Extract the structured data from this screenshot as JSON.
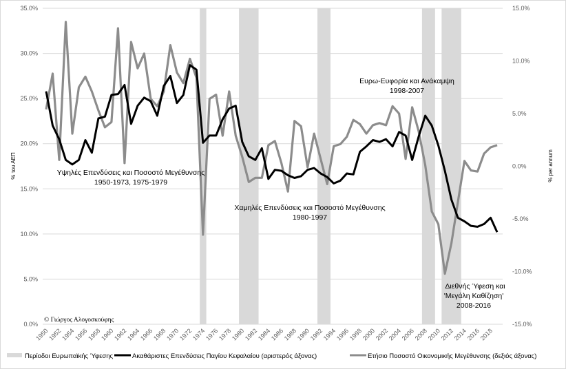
{
  "chart_data": {
    "type": "line",
    "title": "",
    "xlabel": "",
    "ylabel_left": "% του ΑΕΠ",
    "ylabel_right": "% per annum",
    "ylim_left": [
      0,
      35
    ],
    "ylim_right": [
      -15,
      15
    ],
    "yticks_left": [
      "0.0%",
      "5.0%",
      "10.0%",
      "15.0%",
      "20.0%",
      "25.0%",
      "30.0%",
      "35.0%"
    ],
    "yticks_left_values": [
      0,
      5,
      10,
      15,
      20,
      25,
      30,
      35
    ],
    "yticks_right": [
      "-15.0%",
      "-10.0%",
      "-5.0%",
      "0.0%",
      "5.0%",
      "10.0%",
      "15.0%"
    ],
    "yticks_right_values": [
      -15,
      -10,
      -5,
      0,
      5,
      10,
      15
    ],
    "x_range": [
      1950,
      2019
    ],
    "xtick_labels": [
      "1950",
      "1952",
      "1954",
      "1956",
      "1958",
      "1960",
      "1962",
      "1964",
      "1966",
      "1968",
      "1970",
      "1972",
      "1974",
      "1976",
      "1978",
      "1980",
      "1982",
      "1984",
      "1986",
      "1988",
      "1990",
      "1992",
      "1994",
      "1996",
      "1998",
      "2000",
      "2002",
      "2004",
      "2006",
      "2008",
      "2010",
      "2012",
      "2014",
      "2016",
      "2018"
    ],
    "grid": true,
    "legend_position": "bottom",
    "recession_periods": [
      [
        1974,
        1975
      ],
      [
        1980,
        1983
      ],
      [
        1992,
        1994
      ],
      [
        2008,
        2010
      ],
      [
        2011,
        2014
      ]
    ],
    "series": [
      {
        "name": "Ακαθάριστες Επενδύσεις Παγίου Κεφαλαίου (αριστερός άξονας)",
        "axis": "left",
        "color": "#000000",
        "x": [
          1950,
          1951,
          1952,
          1953,
          1954,
          1955,
          1956,
          1957,
          1958,
          1959,
          1960,
          1961,
          1962,
          1963,
          1964,
          1965,
          1966,
          1967,
          1968,
          1969,
          1970,
          1971,
          1972,
          1973,
          1974,
          1975,
          1976,
          1977,
          1978,
          1979,
          1980,
          1981,
          1982,
          1983,
          1984,
          1985,
          1986,
          1987,
          1988,
          1989,
          1990,
          1991,
          1992,
          1993,
          1994,
          1995,
          1996,
          1997,
          1998,
          1999,
          2000,
          2001,
          2002,
          2003,
          2004,
          2005,
          2006,
          2007,
          2008,
          2009,
          2010,
          2011,
          2012,
          2013,
          2014,
          2015,
          2016,
          2017,
          2018,
          2019
        ],
        "values": [
          25.8,
          22.0,
          20.5,
          18.2,
          17.7,
          18.2,
          20.4,
          19.0,
          22.8,
          23.0,
          25.4,
          25.5,
          26.5,
          22.2,
          24.2,
          25.1,
          24.7,
          23.1,
          26.4,
          27.5,
          24.5,
          25.4,
          28.7,
          28.2,
          20.1,
          20.9,
          20.9,
          22.7,
          23.9,
          24.2,
          20.2,
          18.6,
          18.2,
          19.5,
          16.1,
          17.1,
          17.0,
          16.5,
          16.2,
          16.4,
          17.1,
          17.3,
          16.7,
          16.3,
          15.6,
          15.9,
          16.7,
          16.6,
          19.1,
          19.7,
          20.4,
          20.2,
          20.5,
          19.7,
          21.3,
          20.9,
          18.2,
          20.8,
          23.1,
          22.0,
          19.8,
          17.0,
          13.8,
          11.8,
          11.4,
          10.9,
          10.8,
          11.1,
          11.8,
          10.2
        ]
      },
      {
        "name": "Ετήσιο Ποσοστό Οικονομικής Μεγέθυνσης (δεξιός άξονας)",
        "axis": "right",
        "color": "#8c8c8c",
        "x": [
          1950,
          1951,
          1952,
          1953,
          1954,
          1955,
          1956,
          1957,
          1958,
          1959,
          1960,
          1961,
          1962,
          1963,
          1964,
          1965,
          1966,
          1967,
          1968,
          1969,
          1970,
          1971,
          1972,
          1973,
          1974,
          1975,
          1976,
          1977,
          1978,
          1979,
          1980,
          1981,
          1982,
          1983,
          1984,
          1985,
          1986,
          1987,
          1988,
          1989,
          1990,
          1991,
          1992,
          1993,
          1994,
          1995,
          1996,
          1997,
          1998,
          1999,
          2000,
          2001,
          2002,
          2003,
          2004,
          2005,
          2006,
          2007,
          2008,
          2009,
          2010,
          2011,
          2012,
          2013,
          2014,
          2015,
          2016,
          2017,
          2018,
          2019
        ],
        "values": [
          5.4,
          8.8,
          0.6,
          13.7,
          3.1,
          7.5,
          8.5,
          7.1,
          5.3,
          3.7,
          4.2,
          13.1,
          0.3,
          11.8,
          9.3,
          10.7,
          6.4,
          5.7,
          7.1,
          11.5,
          8.9,
          7.9,
          10.2,
          8.4,
          -6.5,
          6.4,
          6.8,
          2.9,
          7.1,
          2.9,
          0.9,
          -1.5,
          -1.1,
          -1.1,
          2.0,
          2.4,
          0.3,
          -2.4,
          4.3,
          3.8,
          -0.1,
          3.1,
          0.7,
          -1.7,
          1.9,
          2.1,
          2.8,
          4.4,
          4.0,
          3.1,
          3.9,
          4.1,
          3.9,
          5.7,
          5.0,
          0.7,
          5.6,
          3.3,
          0.1,
          -4.3,
          -5.5,
          -10.2,
          -7.3,
          -3.4,
          0.5,
          -0.4,
          -0.5,
          1.2,
          1.8,
          2.0
        ]
      }
    ],
    "annotations": [
      {
        "lines": [
          "Υψηλές Επενδύσεις και Ποσοστό Μεγέθυνσης",
          "1950-1973, 1975-1979"
        ]
      },
      {
        "lines": [
          "Χαμηλές Επενδύσεις και Ποσοστό Μεγέθυνσης",
          "1980-1997"
        ]
      },
      {
        "lines": [
          "Ευρω-Ευφορία και Ανάκαμψη",
          "1998-2007"
        ]
      },
      {
        "lines": [
          "Διεθνής Ύφεση και",
          "'Μεγάλη Καθίζηση'",
          "2008-2016"
        ]
      }
    ],
    "copyright": "© Γιώργος Αλογοσκούφης",
    "legend": [
      {
        "label": "Περίοδοι Ευρωπαϊκής Ύφεσης",
        "style": "band",
        "color": "#d9d9d9"
      },
      {
        "label": "Ακαθάριστες Επενδύσεις Παγίου Κεφαλαίου (αριστερός άξονας)",
        "style": "line",
        "color": "#000000"
      },
      {
        "label": "Ετήσιο Ποσοστό Οικονομικής Μεγέθυνσης (δεξιός άξονας)",
        "style": "line",
        "color": "#8c8c8c"
      }
    ]
  }
}
